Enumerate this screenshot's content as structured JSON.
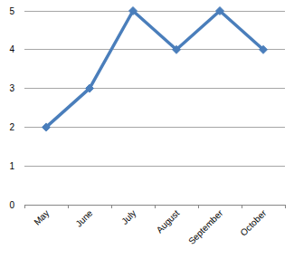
{
  "chart_data": {
    "type": "line",
    "categories": [
      "May",
      "June",
      "July",
      "August",
      "September",
      "October"
    ],
    "values": [
      2,
      3,
      5,
      4,
      5,
      4
    ],
    "color": "#4a7ebb",
    "marker": "diamond",
    "line_style": "solid",
    "ylim": [
      0,
      5
    ],
    "yticks": [
      0,
      1,
      2,
      3,
      4,
      5
    ],
    "grid": true
  }
}
